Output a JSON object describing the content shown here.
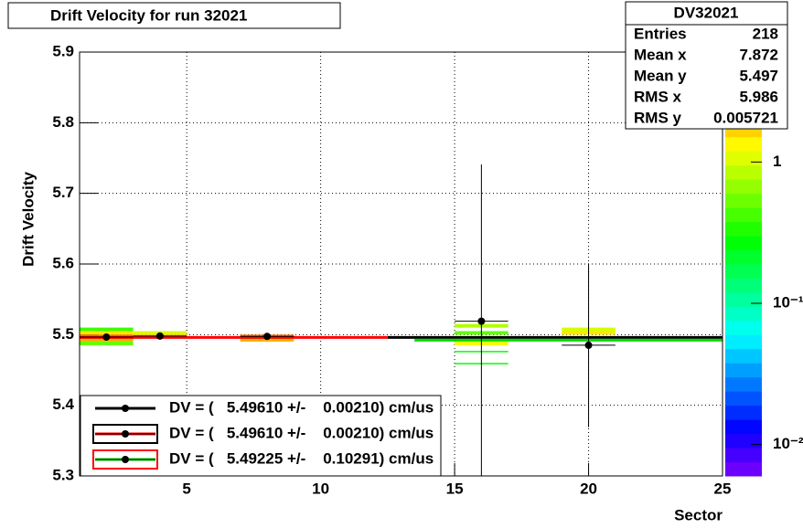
{
  "chart_data": {
    "type": "scatter",
    "title": "Drift Velocity for run 32021",
    "x_label": "Sector",
    "y_label": "Drift Velocity",
    "xlim": [
      1,
      25
    ],
    "ylim": [
      5.3,
      5.9
    ],
    "xticks": [
      5,
      10,
      15,
      20,
      25
    ],
    "yticks": [
      5.3,
      5.4,
      5.5,
      5.6,
      5.7,
      5.8,
      5.9
    ],
    "grid": true,
    "zlog": true,
    "zlim": [
      0.006,
      6
    ],
    "zticks": [
      1,
      {
        "value": 0.1,
        "label": "10⁻¹"
      },
      {
        "value": 0.01,
        "label": "10⁻²"
      }
    ],
    "points": {
      "color": "#000000",
      "x": [
        2,
        4,
        8,
        16,
        20
      ],
      "values": [
        5.4965,
        5.498,
        5.4975,
        5.519,
        5.485
      ],
      "x_errors": [
        1,
        1,
        1,
        1,
        1
      ],
      "y_errors": [
        0.002,
        0.002,
        0.002,
        0.222,
        0.116
      ]
    },
    "cells": {
      "x0": [
        1,
        1,
        1,
        1,
        1,
        3,
        3,
        7,
        7,
        15,
        15,
        15,
        15,
        15,
        19,
        19
      ],
      "x1": [
        3,
        3,
        3,
        3,
        3,
        5,
        5,
        9,
        9,
        17,
        17,
        17,
        17,
        17,
        21,
        21
      ],
      "y0": [
        5.505,
        5.5,
        5.495,
        5.49,
        5.485,
        5.5,
        5.495,
        5.495,
        5.49,
        5.51,
        5.5,
        5.485,
        5.475,
        5.458,
        5.505,
        5.5
      ],
      "y1": [
        5.51,
        5.505,
        5.5,
        5.495,
        5.49,
        5.505,
        5.5,
        5.5,
        5.495,
        5.515,
        5.505,
        5.49,
        5.477,
        5.46,
        5.51,
        5.505
      ],
      "z": [
        0.4,
        1.5,
        3,
        2,
        0.5,
        1,
        2,
        3,
        2,
        0.8,
        0.5,
        1.2,
        0.3,
        0.3,
        1,
        1.5
      ]
    },
    "fits": [
      {
        "name": "DV = (   5.49610 +/-    0.00210) cm/us",
        "value": 5.4961,
        "xrange": [
          12.5,
          25
        ],
        "color": "#000000",
        "frame": "#ffffff"
      },
      {
        "name": "DV = (   5.49610 +/-    0.00210) cm/us",
        "value": 5.4961,
        "xrange": [
          1,
          12.5
        ],
        "color": "#ff0000",
        "frame": "#000000"
      },
      {
        "name": "DV = (   5.49225 +/-    0.10291) cm/us",
        "value": 5.49225,
        "xrange": [
          13.5,
          25
        ],
        "color": "#00dd00",
        "frame": "#ff0000"
      }
    ],
    "stats": {
      "title": "DV32021",
      "rows": [
        [
          "Entries",
          "218"
        ],
        [
          "Mean x",
          "7.872"
        ],
        [
          "Mean y",
          "5.497"
        ],
        [
          "RMS x",
          "5.986"
        ],
        [
          "RMS y",
          "0.005721"
        ]
      ]
    }
  }
}
